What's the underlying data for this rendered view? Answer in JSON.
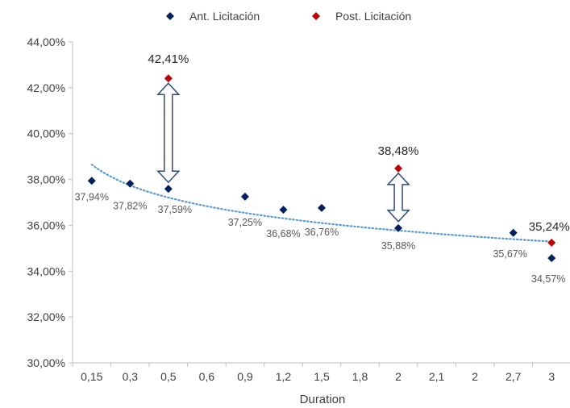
{
  "chart_data": {
    "type": "scatter",
    "xlabel": "Duration",
    "x_ticks": [
      "0,15",
      "0,3",
      "0,5",
      "0,6",
      "0,9",
      "1,2",
      "1,5",
      "1,8",
      "2",
      "2,1",
      "2",
      "2,7",
      "3"
    ],
    "y_ticks": [
      "30,00%",
      "32,00%",
      "34,00%",
      "36,00%",
      "38,00%",
      "40,00%",
      "42,00%",
      "44,00%"
    ],
    "ylim": [
      30,
      44
    ],
    "legend_position": "top",
    "trendline": {
      "style": "dotted",
      "type": "logarithmic",
      "color": "#5b9bd5"
    },
    "series": [
      {
        "name": "Ant. Licitación",
        "color": "#002060",
        "marker": "diamond",
        "points": [
          {
            "x": "0,15",
            "y": 37.94,
            "label": "37,94%"
          },
          {
            "x": "0,3",
            "y": 37.82,
            "label": "37,82%"
          },
          {
            "x": "0,5",
            "y": 37.59,
            "label": "37,59%"
          },
          {
            "x": "0,9",
            "y": 37.25,
            "label": "37,25%"
          },
          {
            "x": "1,2",
            "y": 36.68,
            "label": "36,68%"
          },
          {
            "x": "1,5",
            "y": 36.76,
            "label": "36,76%"
          },
          {
            "x": "2",
            "y": 35.88,
            "label": "35,88%"
          },
          {
            "x": "2,7",
            "y": 35.67,
            "label": "35,67%"
          },
          {
            "x": "3",
            "y": 34.57,
            "label": "34,57%"
          }
        ]
      },
      {
        "name": "Post. Licitación",
        "color": "#c00000",
        "marker": "diamond",
        "points": [
          {
            "x": "0,5",
            "y": 42.41,
            "label": "42,41%"
          },
          {
            "x": "2",
            "y": 38.48,
            "label": "38,48%"
          },
          {
            "x": "3",
            "y": 35.24,
            "label": "35,24%"
          }
        ]
      }
    ],
    "arrows": [
      {
        "x": "0,5",
        "from": 37.59,
        "to": 42.41
      },
      {
        "x": "2",
        "from": 35.88,
        "to": 38.48
      }
    ]
  }
}
